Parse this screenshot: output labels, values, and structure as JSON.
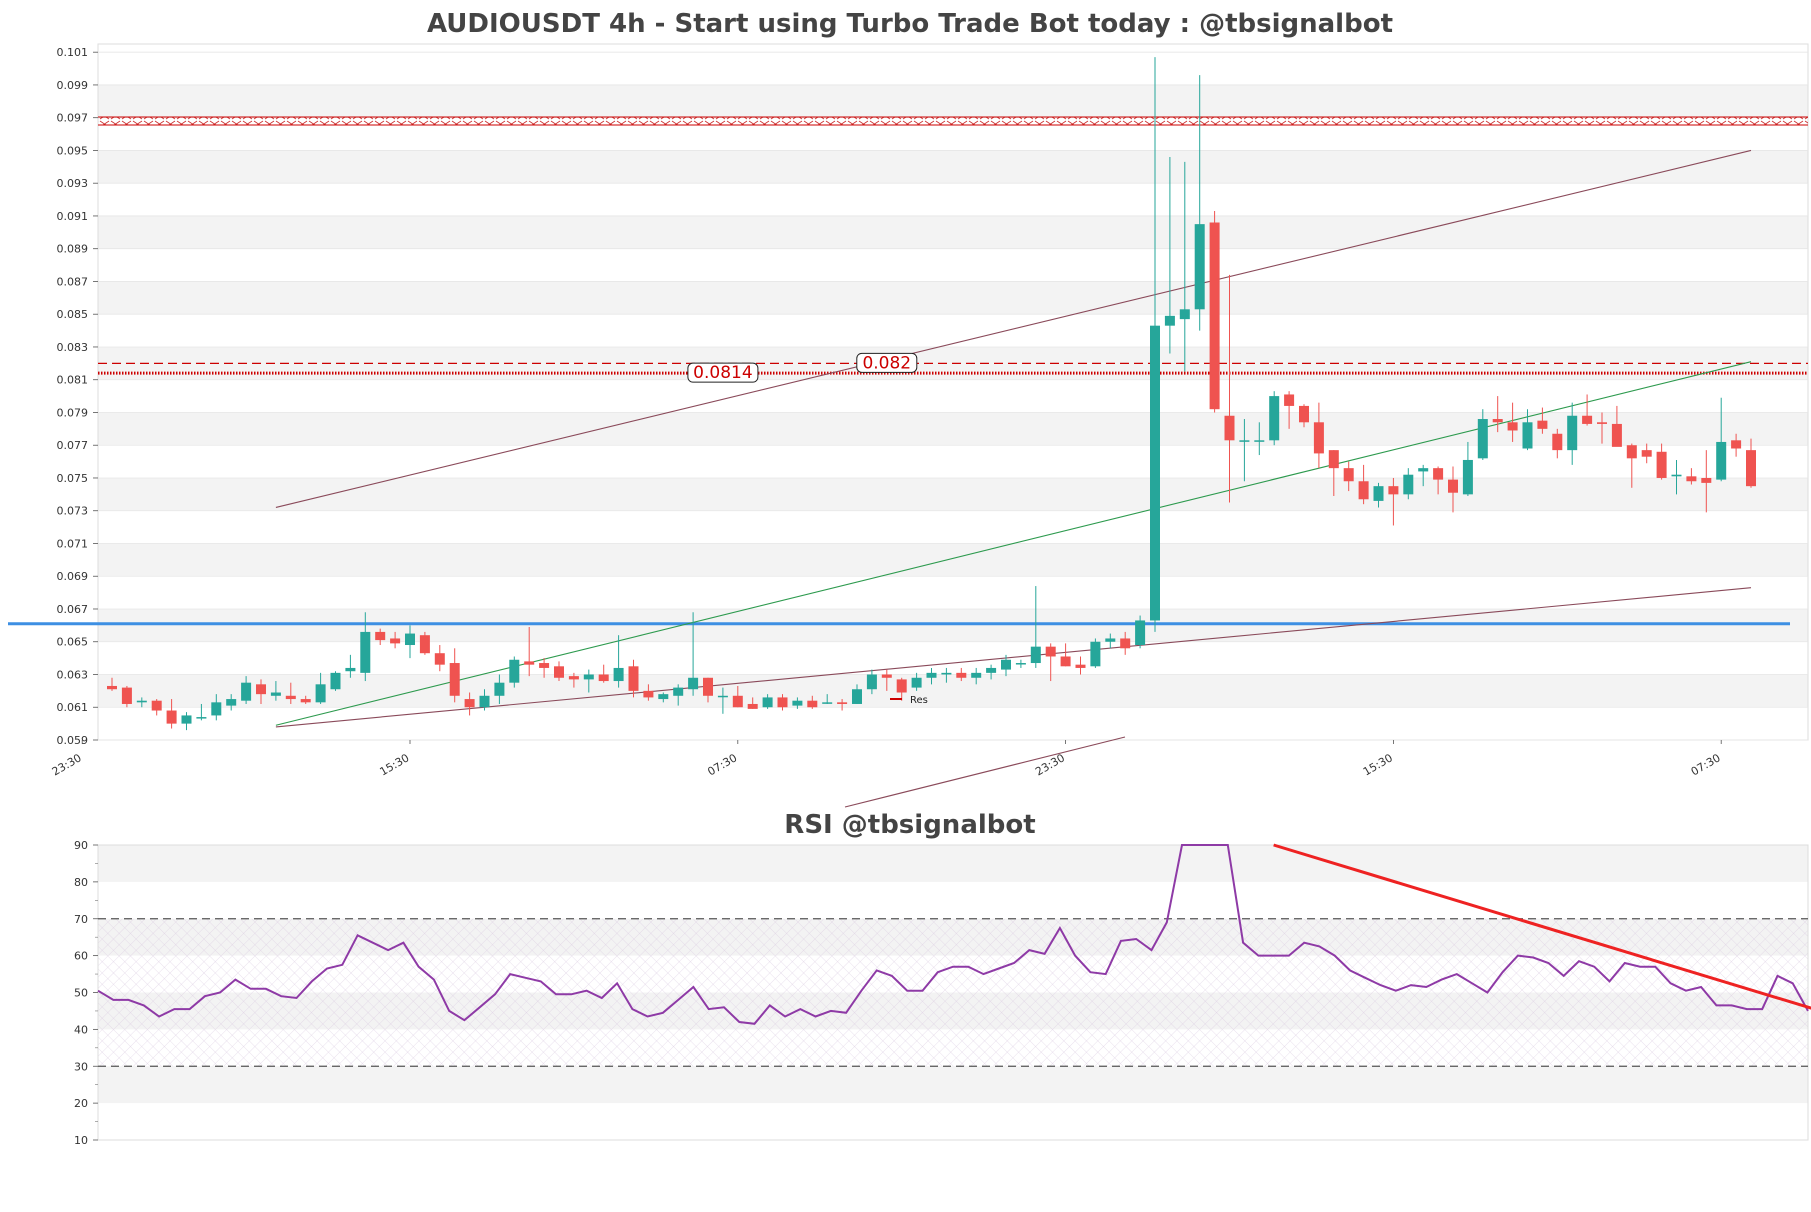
{
  "chart_data": [
    {
      "type": "candlestick",
      "title": "AUDIOUSDT 4h - Start using Turbo Trade Bot today : @tbsignalbot",
      "ylim": [
        0.059,
        0.1015
      ],
      "yticks": [
        0.059,
        0.061,
        0.063,
        0.065,
        0.067,
        0.069,
        0.071,
        0.073,
        0.075,
        0.077,
        0.079,
        0.081,
        0.083,
        0.085,
        0.087,
        0.089,
        0.091,
        0.093,
        0.095,
        0.097,
        0.099,
        0.101
      ],
      "xtick_labels": [
        {
          "i": -2,
          "label": "23:30"
        },
        {
          "i": 20,
          "label": "15:30"
        },
        {
          "i": 42,
          "label": "07:30"
        },
        {
          "i": 64,
          "label": "23:30"
        },
        {
          "i": 86,
          "label": "15:30"
        },
        {
          "i": 108,
          "label": "07:30"
        }
      ],
      "candles_ohlc": [
        [
          0.0623,
          0.0628,
          0.062,
          0.0621
        ],
        [
          0.0622,
          0.0623,
          0.061,
          0.0612
        ],
        [
          0.0613,
          0.0616,
          0.061,
          0.0614
        ],
        [
          0.0614,
          0.0615,
          0.0605,
          0.0608
        ],
        [
          0.0608,
          0.0615,
          0.0597,
          0.06
        ],
        [
          0.06,
          0.0607,
          0.0596,
          0.0605
        ],
        [
          0.0604,
          0.0612,
          0.0602,
          0.0604
        ],
        [
          0.0605,
          0.0618,
          0.0602,
          0.0613
        ],
        [
          0.0611,
          0.0618,
          0.0608,
          0.0615
        ],
        [
          0.0614,
          0.0629,
          0.0612,
          0.0625
        ],
        [
          0.0624,
          0.0627,
          0.0612,
          0.0618
        ],
        [
          0.0617,
          0.0626,
          0.0614,
          0.0619
        ],
        [
          0.0617,
          0.0625,
          0.0612,
          0.0615
        ],
        [
          0.0615,
          0.0617,
          0.0612,
          0.0613
        ],
        [
          0.0613,
          0.0631,
          0.0612,
          0.0624
        ],
        [
          0.0621,
          0.0632,
          0.062,
          0.0631
        ],
        [
          0.0632,
          0.0642,
          0.0628,
          0.0634
        ],
        [
          0.0631,
          0.0668,
          0.0626,
          0.0656
        ],
        [
          0.0656,
          0.0658,
          0.0648,
          0.0651
        ],
        [
          0.0652,
          0.0656,
          0.0646,
          0.0649
        ],
        [
          0.0648,
          0.066,
          0.064,
          0.0655
        ],
        [
          0.0654,
          0.0656,
          0.0642,
          0.0643
        ],
        [
          0.0643,
          0.0648,
          0.0632,
          0.0636
        ],
        [
          0.0637,
          0.0646,
          0.0613,
          0.0617
        ],
        [
          0.0615,
          0.0619,
          0.0605,
          0.061
        ],
        [
          0.061,
          0.0621,
          0.0608,
          0.0617
        ],
        [
          0.0617,
          0.063,
          0.0612,
          0.0625
        ],
        [
          0.0625,
          0.0641,
          0.0622,
          0.0639
        ],
        [
          0.0638,
          0.0659,
          0.0629,
          0.0636
        ],
        [
          0.0637,
          0.064,
          0.0628,
          0.0634
        ],
        [
          0.0635,
          0.0638,
          0.0626,
          0.0628
        ],
        [
          0.0629,
          0.0631,
          0.0622,
          0.0627
        ],
        [
          0.0627,
          0.0633,
          0.0619,
          0.063
        ],
        [
          0.063,
          0.0636,
          0.0625,
          0.0626
        ],
        [
          0.0626,
          0.0654,
          0.0622,
          0.0634
        ],
        [
          0.0635,
          0.0639,
          0.0616,
          0.062
        ],
        [
          0.062,
          0.0624,
          0.0614,
          0.0616
        ],
        [
          0.0615,
          0.0619,
          0.0613,
          0.0618
        ],
        [
          0.0617,
          0.0624,
          0.0611,
          0.0622
        ],
        [
          0.0621,
          0.0668,
          0.0617,
          0.0628
        ],
        [
          0.0628,
          0.0628,
          0.0613,
          0.0617
        ],
        [
          0.0617,
          0.0622,
          0.0606,
          0.0617
        ],
        [
          0.0617,
          0.0623,
          0.061,
          0.061
        ],
        [
          0.0612,
          0.0616,
          0.0609,
          0.0609
        ],
        [
          0.061,
          0.0618,
          0.0609,
          0.0616
        ],
        [
          0.0616,
          0.0618,
          0.0608,
          0.061
        ],
        [
          0.0611,
          0.0616,
          0.0609,
          0.0614
        ],
        [
          0.0614,
          0.0617,
          0.0609,
          0.061
        ],
        [
          0.0613,
          0.0618,
          0.0612,
          0.0613
        ],
        [
          0.0613,
          0.0615,
          0.0608,
          0.0612
        ],
        [
          0.0612,
          0.0624,
          0.0612,
          0.0621
        ],
        [
          0.0621,
          0.0633,
          0.0618,
          0.063
        ],
        [
          0.063,
          0.0633,
          0.062,
          0.0628
        ],
        [
          0.0627,
          0.0628,
          0.0614,
          0.0619
        ],
        [
          0.0622,
          0.0631,
          0.062,
          0.0628
        ],
        [
          0.0628,
          0.0634,
          0.0624,
          0.0631
        ],
        [
          0.063,
          0.0634,
          0.0625,
          0.0631
        ],
        [
          0.0631,
          0.0634,
          0.0626,
          0.0628
        ],
        [
          0.0628,
          0.0634,
          0.0624,
          0.0631
        ],
        [
          0.0631,
          0.0636,
          0.0627,
          0.0634
        ],
        [
          0.0633,
          0.0642,
          0.0629,
          0.0639
        ],
        [
          0.0637,
          0.0639,
          0.0634,
          0.0637
        ],
        [
          0.0637,
          0.0684,
          0.0634,
          0.0647
        ],
        [
          0.0647,
          0.0649,
          0.0626,
          0.0641
        ],
        [
          0.0641,
          0.0649,
          0.0635,
          0.0635
        ],
        [
          0.0636,
          0.0641,
          0.063,
          0.0634
        ],
        [
          0.0635,
          0.0652,
          0.0634,
          0.065
        ],
        [
          0.065,
          0.0655,
          0.0646,
          0.0652
        ],
        [
          0.0652,
          0.0656,
          0.0642,
          0.0646
        ],
        [
          0.0648,
          0.0666,
          0.0646,
          0.0663
        ],
        [
          0.0663,
          0.1007,
          0.0656,
          0.0843
        ],
        [
          0.0843,
          0.0946,
          0.0826,
          0.0849
        ],
        [
          0.0847,
          0.0943,
          0.0815,
          0.0853
        ],
        [
          0.0853,
          0.0996,
          0.084,
          0.0905
        ],
        [
          0.0906,
          0.0913,
          0.079,
          0.0792
        ],
        [
          0.0788,
          0.0874,
          0.0735,
          0.0773
        ],
        [
          0.0773,
          0.0786,
          0.0748,
          0.0773
        ],
        [
          0.0773,
          0.0784,
          0.0764,
          0.0773
        ],
        [
          0.0773,
          0.0803,
          0.077,
          0.08
        ],
        [
          0.0801,
          0.0803,
          0.078,
          0.0794
        ],
        [
          0.0794,
          0.0795,
          0.0781,
          0.0784
        ],
        [
          0.0784,
          0.0796,
          0.0756,
          0.0765
        ],
        [
          0.0767,
          0.0767,
          0.0739,
          0.0756
        ],
        [
          0.0756,
          0.076,
          0.0742,
          0.0748
        ],
        [
          0.0748,
          0.0758,
          0.0734,
          0.0737
        ],
        [
          0.0736,
          0.0747,
          0.0732,
          0.0745
        ],
        [
          0.0745,
          0.075,
          0.0721,
          0.074
        ],
        [
          0.074,
          0.0756,
          0.0737,
          0.0752
        ],
        [
          0.0754,
          0.0758,
          0.0745,
          0.0756
        ],
        [
          0.0756,
          0.0757,
          0.074,
          0.0749
        ],
        [
          0.0749,
          0.0757,
          0.0729,
          0.0741
        ],
        [
          0.074,
          0.0772,
          0.0739,
          0.0761
        ],
        [
          0.0762,
          0.0792,
          0.0761,
          0.0786
        ],
        [
          0.0786,
          0.08,
          0.0778,
          0.0784
        ],
        [
          0.0784,
          0.0796,
          0.0772,
          0.0779
        ],
        [
          0.0768,
          0.0792,
          0.0767,
          0.0784
        ],
        [
          0.0785,
          0.0793,
          0.0777,
          0.078
        ],
        [
          0.0777,
          0.078,
          0.0762,
          0.0767
        ],
        [
          0.0767,
          0.0796,
          0.0758,
          0.0788
        ],
        [
          0.0788,
          0.0801,
          0.0782,
          0.0783
        ],
        [
          0.0784,
          0.079,
          0.0771,
          0.0783
        ],
        [
          0.0783,
          0.0794,
          0.077,
          0.0769
        ],
        [
          0.077,
          0.0771,
          0.0744,
          0.0762
        ],
        [
          0.0767,
          0.0771,
          0.0759,
          0.0763
        ],
        [
          0.0766,
          0.0771,
          0.0749,
          0.075
        ],
        [
          0.0751,
          0.0761,
          0.074,
          0.0752
        ],
        [
          0.0751,
          0.0756,
          0.0746,
          0.0748
        ],
        [
          0.075,
          0.0767,
          0.0729,
          0.0747
        ],
        [
          0.0749,
          0.0799,
          0.0748,
          0.0772
        ],
        [
          0.0773,
          0.0777,
          0.0763,
          0.0768
        ],
        [
          0.0767,
          0.0774,
          0.0744,
          0.0745
        ]
      ],
      "up_color": "#26a69a",
      "down_color": "#ef5350",
      "annotations": [
        {
          "value": 0.0814,
          "label": "0.0814",
          "label_at": 41,
          "style": "dotted",
          "color": "#cc0000"
        },
        {
          "value": 0.082,
          "label": "0.082",
          "label_at": 52,
          "style": "dashed",
          "color": "#cc0000"
        },
        {
          "value": 0.0968,
          "label": "",
          "style": "hatched",
          "color": "#cc0000"
        },
        {
          "value": 0.0661,
          "label": "",
          "style": "solid",
          "color": "#3d8fe3"
        }
      ],
      "trend_lines": [
        {
          "from": [
            11,
            0.0732
          ],
          "to": [
            110,
            0.095
          ],
          "color": "#8a4a5a"
        },
        {
          "from": [
            11,
            0.0598
          ],
          "to": [
            110,
            0.0683
          ],
          "color": "#8a4a5a"
        },
        {
          "from": [
            11,
            0.0599
          ],
          "to": [
            110,
            0.0821
          ],
          "color": "#2d9a4e"
        }
      ],
      "legend": {
        "label": "Res",
        "color": "#cc0000"
      }
    },
    {
      "type": "line",
      "title": "RSI @tbsignalbot",
      "ylim": [
        10,
        90
      ],
      "yticks": [
        10,
        20,
        30,
        40,
        50,
        60,
        70,
        80,
        90
      ],
      "series": [
        {
          "values": [
            50.5,
            48.0,
            48.0,
            46.5,
            43.5,
            45.5,
            45.5,
            49.0,
            50.0,
            53.5,
            51.0,
            51.0,
            49.0,
            48.5,
            53.0,
            56.5,
            57.5,
            65.5,
            63.5,
            61.5,
            63.5,
            57.0,
            53.5,
            45.0,
            42.5,
            46.0,
            49.5,
            55.0,
            54.0,
            53.0,
            49.5,
            49.5,
            50.5,
            48.5,
            52.5,
            45.5,
            43.5,
            44.5,
            48.0,
            51.5,
            45.5,
            46.0,
            42.0,
            41.5,
            46.5,
            43.5,
            45.5,
            43.5,
            45.0,
            44.5,
            50.5,
            56.0,
            54.5,
            50.5,
            50.5,
            55.5,
            57.0,
            57.0,
            55.0,
            56.5,
            58.0,
            61.5,
            60.5,
            67.5,
            60.0,
            55.5,
            55.0,
            64.0,
            64.5,
            61.5,
            69.0,
            91.0,
            91.0,
            91.0,
            91.0,
            63.5,
            60.0,
            60.0,
            60.0,
            63.5,
            62.5,
            60.0,
            56.0,
            54.0,
            52.0,
            50.5,
            52.0,
            51.5,
            53.5,
            55.0,
            52.5,
            50.0,
            55.5,
            60.0,
            59.5,
            58.0,
            54.5,
            58.5,
            57.0,
            53.0,
            58.0,
            57.0,
            57.0,
            52.5,
            50.5,
            51.5,
            46.5,
            46.5,
            45.5,
            45.5,
            54.5,
            52.5,
            45.0
          ]
        }
      ],
      "reference_lines": [
        30,
        70
      ],
      "trend_line": {
        "from": [
          77,
          90
        ],
        "to": [
          114,
          43.5
        ],
        "color": "#ee2222"
      }
    }
  ]
}
